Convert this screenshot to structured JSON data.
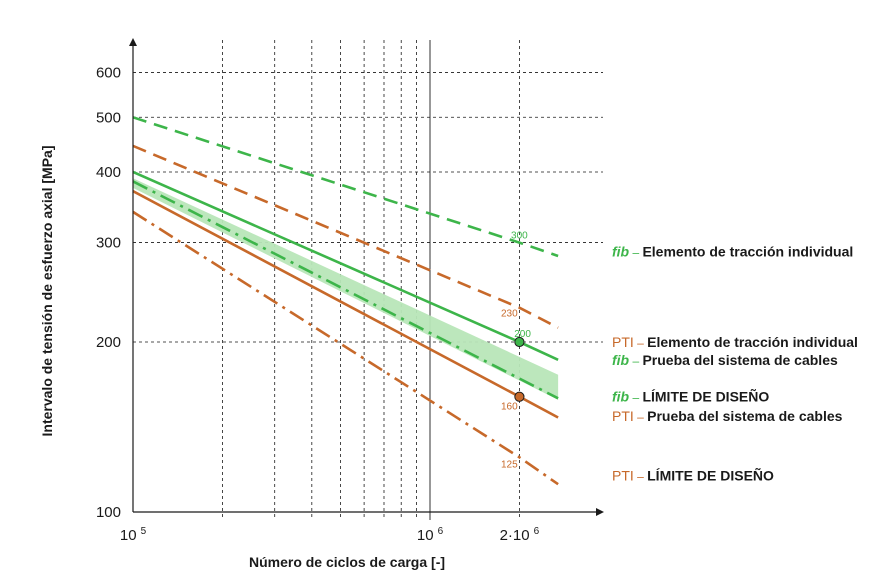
{
  "colors": {
    "green": "#3db54a",
    "band": "#b8e6b8",
    "orange": "#c7692a",
    "grid": "#1a1a1a"
  },
  "chart_data": {
    "type": "line",
    "title": "",
    "xlabel": "Número de ciclos de carga [-]",
    "ylabel": "Intervalo de tensión de esfuerzo axial [MPa]",
    "xscale": "log",
    "yscale": "log",
    "xlim": [
      100000,
      2800000
    ],
    "ylim": [
      100,
      680
    ],
    "x_ticks": [
      {
        "value": 100000,
        "base": "10",
        "exp": "5"
      },
      {
        "value": 1000000,
        "base": "10",
        "exp": "6"
      },
      {
        "value": 2000000,
        "base": "2·10",
        "exp": "6"
      }
    ],
    "y_ticks": [
      {
        "value": 100,
        "label": "100"
      },
      {
        "value": 200,
        "label": "200"
      },
      {
        "value": 300,
        "label": "300"
      },
      {
        "value": 400,
        "label": "400"
      },
      {
        "value": 500,
        "label": "500"
      },
      {
        "value": 600,
        "label": "600"
      }
    ],
    "grid": "log minor gridlines, dashed",
    "series": [
      {
        "name": "fib – Elemento de tracción individual",
        "color": "#3db54a",
        "style": "dashed",
        "x": [
          100000,
          2000000,
          2700000
        ],
        "y": [
          500,
          300,
          284
        ]
      },
      {
        "name": "PTI – Elemento de tracción individual",
        "color": "#c7692a",
        "style": "dashed",
        "x": [
          100000,
          2000000,
          2700000
        ],
        "y": [
          445,
          230,
          212
        ]
      },
      {
        "name": "fib – Prueba del sistema de cables",
        "color": "#3db54a",
        "style": "solid",
        "x": [
          100000,
          2000000,
          2700000
        ],
        "y": [
          400,
          200,
          186
        ]
      },
      {
        "name": "fib – LÍMITE DE DISEÑO",
        "color": "#3db54a",
        "style": "dashdot",
        "x": [
          100000,
          2700000
        ],
        "y": [
          385,
          159
        ]
      },
      {
        "name": "PTI – Prueba del sistema de cables",
        "color": "#c7692a",
        "style": "solid",
        "x": [
          100000,
          2000000,
          2700000
        ],
        "y": [
          370,
          160,
          147
        ]
      },
      {
        "name": "PTI – LÍMITE DE DISEÑO",
        "color": "#c7692a",
        "style": "dashdot",
        "x": [
          100000,
          2000000,
          2700000
        ],
        "y": [
          340,
          125,
          112
        ]
      }
    ],
    "band": {
      "x": [
        100000,
        2700000
      ],
      "y_upper": [
        390,
        175
      ],
      "y_lower": [
        375,
        158
      ]
    },
    "points": [
      {
        "x": 2000000,
        "y": 200,
        "color": "#3db54a"
      },
      {
        "x": 2000000,
        "y": 160,
        "color": "#c7692a"
      }
    ],
    "annotations": [
      {
        "text": "300",
        "x": 2000000,
        "y": 305,
        "color": "#3db54a"
      },
      {
        "text": "230",
        "x": 1850000,
        "y": 222,
        "color": "#c7692a"
      },
      {
        "text": "200",
        "x": 2050000,
        "y": 204,
        "color": "#3db54a"
      },
      {
        "text": "160",
        "x": 1850000,
        "y": 152,
        "color": "#c7692a"
      },
      {
        "text": "125",
        "x": 1850000,
        "y": 120,
        "color": "#c7692a"
      }
    ],
    "legend": [
      {
        "prefix": "fib",
        "prefix_style": "italic",
        "sep": " – ",
        "text": "Elemento de tracción individual",
        "color": "#3db54a",
        "y": 289
      },
      {
        "prefix": "PTI",
        "prefix_style": "normal",
        "sep": " –  ",
        "text": "Elemento de tracción individual",
        "color": "#c7692a",
        "y": 200
      },
      {
        "prefix": "fib",
        "prefix_style": "italic",
        "sep": " – ",
        "text": "Prueba del sistema de cables",
        "color": "#3db54a",
        "y": 186
      },
      {
        "prefix": "fib",
        "prefix_style": "italic",
        "sep": " – ",
        "text": "LÍMITE DE DISEÑO",
        "color": "#3db54a",
        "y": 160
      },
      {
        "prefix": "PTI",
        "prefix_style": "normal",
        "sep": " –  ",
        "text": "Prueba del sistema de cables",
        "color": "#c7692a",
        "y": 148
      },
      {
        "prefix": "PTI",
        "prefix_style": "normal",
        "sep": " –  ",
        "text": "LÍMITE DE DISEÑO",
        "color": "#c7692a",
        "y": 116
      }
    ],
    "legend_placement": "right"
  }
}
